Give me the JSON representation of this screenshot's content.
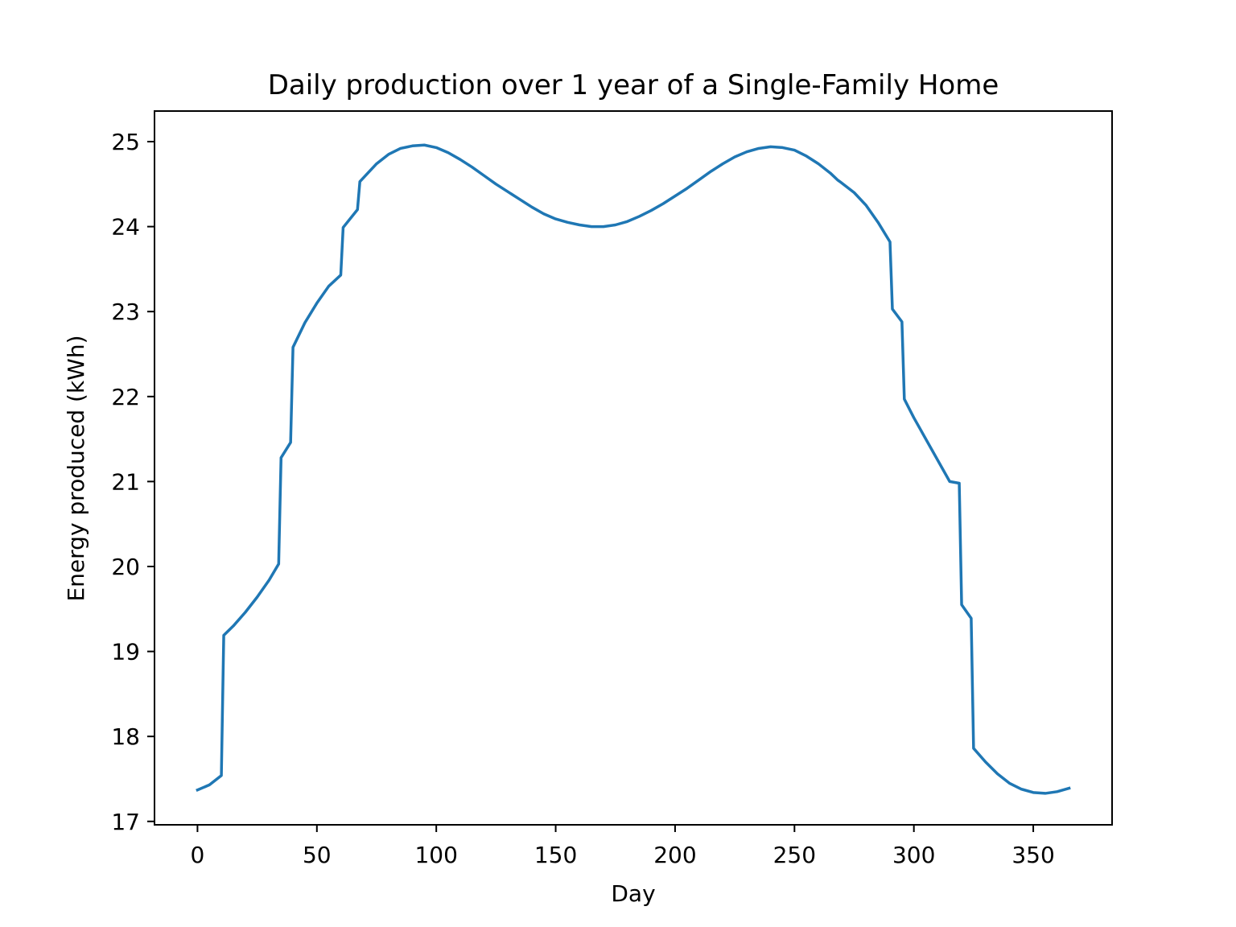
{
  "chart_data": {
    "type": "line",
    "title": "Daily production over 1 year of a Single-Family Home",
    "xlabel": "Day",
    "ylabel": "Energy produced (kWh)",
    "xlim": [
      -18,
      383
    ],
    "ylim": [
      16.96,
      25.36
    ],
    "xticks": [
      0,
      50,
      100,
      150,
      200,
      250,
      300,
      350
    ],
    "yticks": [
      17,
      18,
      19,
      20,
      21,
      22,
      23,
      24,
      25
    ],
    "grid": false,
    "color": "#1f77b4",
    "series": [
      {
        "x": [
          0,
          5,
          10,
          11,
          15,
          20,
          25,
          30,
          34,
          35,
          39,
          40,
          45,
          50,
          55,
          60,
          61,
          67,
          68,
          75,
          80,
          85,
          90,
          95,
          100,
          105,
          110,
          115,
          120,
          125,
          130,
          135,
          140,
          145,
          150,
          155,
          160,
          165,
          170,
          175,
          180,
          185,
          190,
          195,
          200,
          205,
          210,
          215,
          220,
          225,
          230,
          235,
          240,
          245,
          250,
          255,
          260,
          265,
          268,
          269,
          275,
          280,
          285,
          290,
          291,
          295,
          296,
          300,
          305,
          310,
          315,
          319,
          320,
          324,
          325,
          330,
          335,
          340,
          345,
          350,
          355,
          360,
          365
        ],
        "y": [
          17.37,
          17.43,
          17.54,
          19.19,
          19.3,
          19.46,
          19.64,
          19.84,
          20.03,
          21.28,
          21.46,
          22.58,
          22.87,
          23.1,
          23.3,
          23.43,
          23.99,
          24.2,
          24.53,
          24.74,
          24.85,
          24.92,
          24.95,
          24.96,
          24.93,
          24.87,
          24.79,
          24.7,
          24.6,
          24.5,
          24.41,
          24.32,
          24.23,
          24.15,
          24.09,
          24.05,
          24.02,
          24.0,
          24.0,
          24.02,
          24.06,
          24.12,
          24.19,
          24.27,
          24.36,
          24.45,
          24.55,
          24.65,
          24.74,
          24.82,
          24.88,
          24.92,
          24.94,
          24.93,
          24.9,
          24.83,
          24.74,
          24.63,
          24.55,
          24.53,
          24.4,
          24.25,
          24.05,
          23.82,
          23.03,
          22.88,
          21.97,
          21.75,
          21.5,
          21.25,
          21.0,
          20.98,
          19.55,
          19.39,
          17.86,
          17.7,
          17.56,
          17.45,
          17.38,
          17.34,
          17.33,
          17.35,
          17.39
        ]
      }
    ]
  }
}
